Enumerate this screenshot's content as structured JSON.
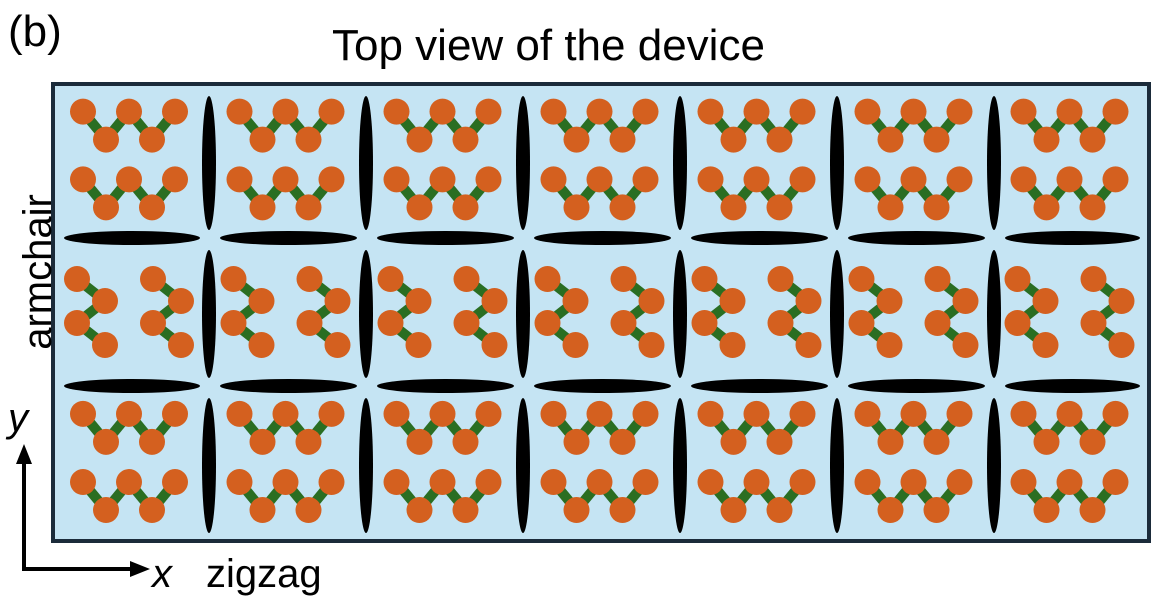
{
  "panel_label": "(b)",
  "title": "Top view of the device",
  "labels": {
    "vertical_direction": "armchair",
    "horizontal_direction": "zigzag",
    "y_axis": "y",
    "x_axis": "x"
  },
  "colors": {
    "substrate": "#c5e4f3",
    "border": "#1b2b3a",
    "atom": "#d4601f",
    "bond": "#2a6e22",
    "slot": "#000000"
  },
  "grid": {
    "columns": 7,
    "rows": 3,
    "middle_row_orientation": "rotated"
  }
}
